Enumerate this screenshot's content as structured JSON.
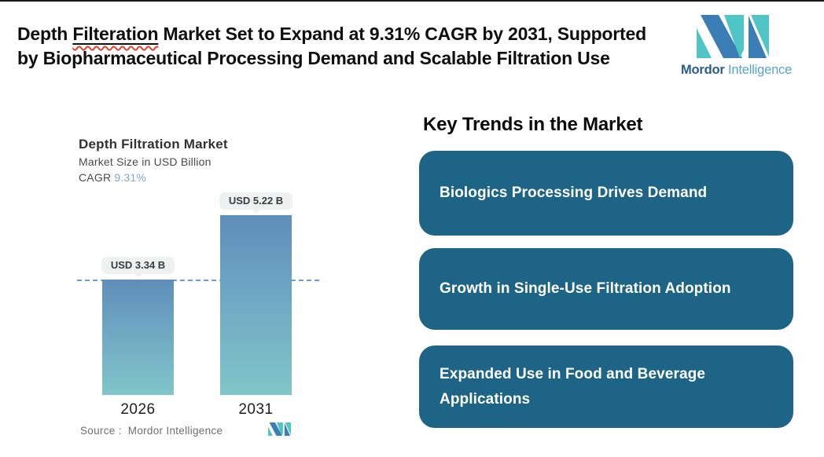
{
  "header": {
    "title_part1": "Depth ",
    "title_misspelled": "Filteration",
    "title_part2": " Market Set to Expand at 9.31% CAGR by 2031, Supported by Biopharmaceutical Processing Demand and Scalable Filtration Use"
  },
  "logo": {
    "brand_bold": "Mordor",
    "brand_light": " Intelligence"
  },
  "chart": {
    "title": "Depth Filtration Market",
    "subtitle": "Market Size in USD Billion",
    "cagr_label": "CAGR ",
    "cagr_value": "9.31%",
    "source_label": "Source :  Mordor Intelligence"
  },
  "chart_data": {
    "type": "bar",
    "title": "Depth Filtration Market",
    "subtitle": "Market Size in USD Billion",
    "cagr": "9.31%",
    "categories": [
      "2026",
      "2031"
    ],
    "values": [
      3.34,
      5.22
    ],
    "value_labels": [
      "USD 3.34 B",
      "USD 5.22 B"
    ],
    "unit": "USD Billion",
    "ylim": [
      0,
      5.22
    ],
    "reference_line": 3.34,
    "grid": false,
    "legend": "none",
    "source": "Mordor Intelligence"
  },
  "trends": {
    "heading": "Key Trends in the Market",
    "items": [
      {
        "label": "Biologics Processing Drives Demand"
      },
      {
        "label": "Growth in Single-Use Filtration Adoption"
      },
      {
        "label": "Expanded Use in Food and Beverage Applications"
      }
    ]
  },
  "colors": {
    "trend_box": "#1d6486",
    "bar_top": "#5f8eba",
    "bar_bottom": "#80c6c9",
    "dashed_line": "#6b9bd3",
    "cagr_value": "#7fa9cc",
    "pill_bg": "#edf2f1",
    "misspell_underline": "#e0442e",
    "logo_blue": "#3b7db5",
    "logo_teal": "#4fc5c6"
  }
}
